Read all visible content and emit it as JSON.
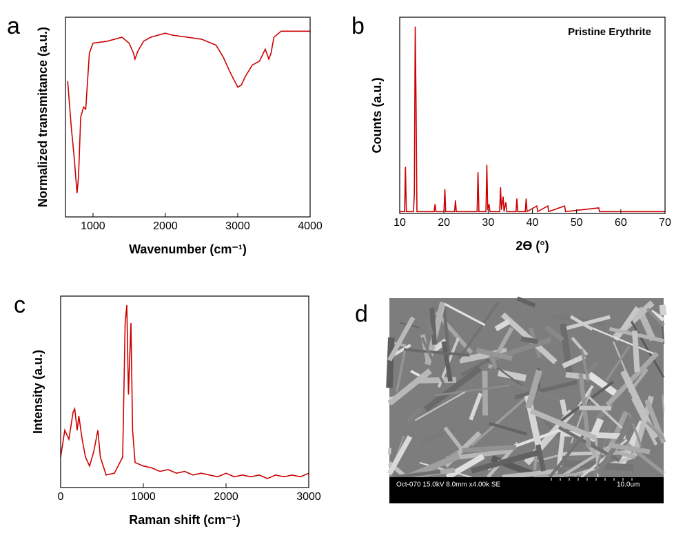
{
  "chart_data": [
    {
      "type": "line",
      "panel": "a",
      "xlabel": "Wavenumber (cm⁻¹)",
      "ylabel": "Normalized transmitance (a.u.)",
      "xlim": [
        620,
        4000
      ],
      "xticks": [
        1000,
        2000,
        3000,
        4000
      ],
      "ylim": [
        0,
        1
      ],
      "series": [
        {
          "color": "#cc0000",
          "x": [
            650,
            700,
            740,
            770,
            780,
            800,
            830,
            870,
            900,
            950,
            1000,
            1200,
            1400,
            1500,
            1560,
            1580,
            1620,
            1700,
            1800,
            2000,
            2100,
            2300,
            2500,
            2700,
            2800,
            2900,
            3000,
            3050,
            3100,
            3200,
            3300,
            3380,
            3430,
            3460,
            3500,
            3600,
            3700,
            4000
          ],
          "values": [
            0.68,
            0.45,
            0.3,
            0.16,
            0.12,
            0.2,
            0.5,
            0.55,
            0.54,
            0.82,
            0.87,
            0.88,
            0.9,
            0.87,
            0.82,
            0.79,
            0.83,
            0.88,
            0.9,
            0.92,
            0.91,
            0.9,
            0.89,
            0.86,
            0.8,
            0.72,
            0.65,
            0.66,
            0.7,
            0.76,
            0.78,
            0.84,
            0.79,
            0.82,
            0.9,
            0.93,
            0.93,
            0.93
          ]
        }
      ]
    },
    {
      "type": "line",
      "panel": "b",
      "xlabel": "2ϴ (°)",
      "ylabel": "Counts (a.u.)",
      "annotation": "Pristine Erythrite",
      "xlim": [
        10,
        70
      ],
      "xticks": [
        10,
        20,
        30,
        40,
        50,
        60,
        70
      ],
      "ylim": [
        0,
        1.05
      ],
      "series": [
        {
          "color": "#cc0000",
          "x": [
            10,
            11.1,
            11.3,
            11.5,
            13.1,
            13.3,
            13.5,
            13.7,
            13.9,
            17.8,
            18,
            18.2,
            20,
            20.2,
            20.4,
            22.4,
            22.6,
            22.8,
            27.5,
            27.7,
            27.9,
            29.5,
            29.7,
            29.9,
            30.2,
            30.4,
            32.6,
            32.8,
            33,
            33.4,
            33.6,
            34,
            34.2,
            36.3,
            36.5,
            36.7,
            38.4,
            38.6,
            38.8,
            41,
            41.2,
            43.5,
            43.7,
            47.3,
            47.5,
            55,
            55.2,
            70
          ],
          "values": [
            0.01,
            0.01,
            0.25,
            0.01,
            0.01,
            0.1,
            1.0,
            0.6,
            0.01,
            0.01,
            0.05,
            0.01,
            0.01,
            0.13,
            0.01,
            0.01,
            0.07,
            0.01,
            0.01,
            0.22,
            0.01,
            0.01,
            0.26,
            0.02,
            0.05,
            0.01,
            0.01,
            0.14,
            0.02,
            0.09,
            0.01,
            0.06,
            0.01,
            0.01,
            0.08,
            0.01,
            0.01,
            0.08,
            0.01,
            0.04,
            0.01,
            0.04,
            0.01,
            0.04,
            0.01,
            0.03,
            0.01,
            0.01
          ]
        }
      ]
    },
    {
      "type": "line",
      "panel": "c",
      "xlabel": "Raman shift (cm⁻¹)",
      "ylabel": "Intensity (a.u.)",
      "xlim": [
        0,
        3000
      ],
      "xticks": [
        0,
        1000,
        2000,
        3000
      ],
      "ylim": [
        -0.02,
        1.05
      ],
      "series": [
        {
          "color": "#cc0000",
          "x": [
            0,
            50,
            100,
            150,
            170,
            200,
            220,
            260,
            300,
            350,
            400,
            450,
            480,
            550,
            650,
            750,
            780,
            800,
            820,
            850,
            870,
            900,
            1000,
            1100,
            1200,
            1300,
            1400,
            1500,
            1600,
            1700,
            1800,
            1900,
            2000,
            2100,
            2200,
            2300,
            2400,
            2500,
            2600,
            2700,
            2800,
            2900,
            3000
          ],
          "values": [
            0.15,
            0.3,
            0.25,
            0.4,
            0.42,
            0.3,
            0.38,
            0.25,
            0.15,
            0.1,
            0.18,
            0.3,
            0.15,
            0.05,
            0.06,
            0.15,
            0.9,
            1.0,
            0.5,
            0.9,
            0.3,
            0.12,
            0.1,
            0.09,
            0.07,
            0.08,
            0.06,
            0.07,
            0.05,
            0.06,
            0.05,
            0.04,
            0.06,
            0.04,
            0.05,
            0.04,
            0.05,
            0.03,
            0.05,
            0.04,
            0.05,
            0.04,
            0.06
          ]
        }
      ]
    }
  ],
  "image": {
    "panel": "d",
    "caption": "Oct-070 15.0kV 8.0mm x4.00k SE",
    "scale": "10.0um"
  }
}
